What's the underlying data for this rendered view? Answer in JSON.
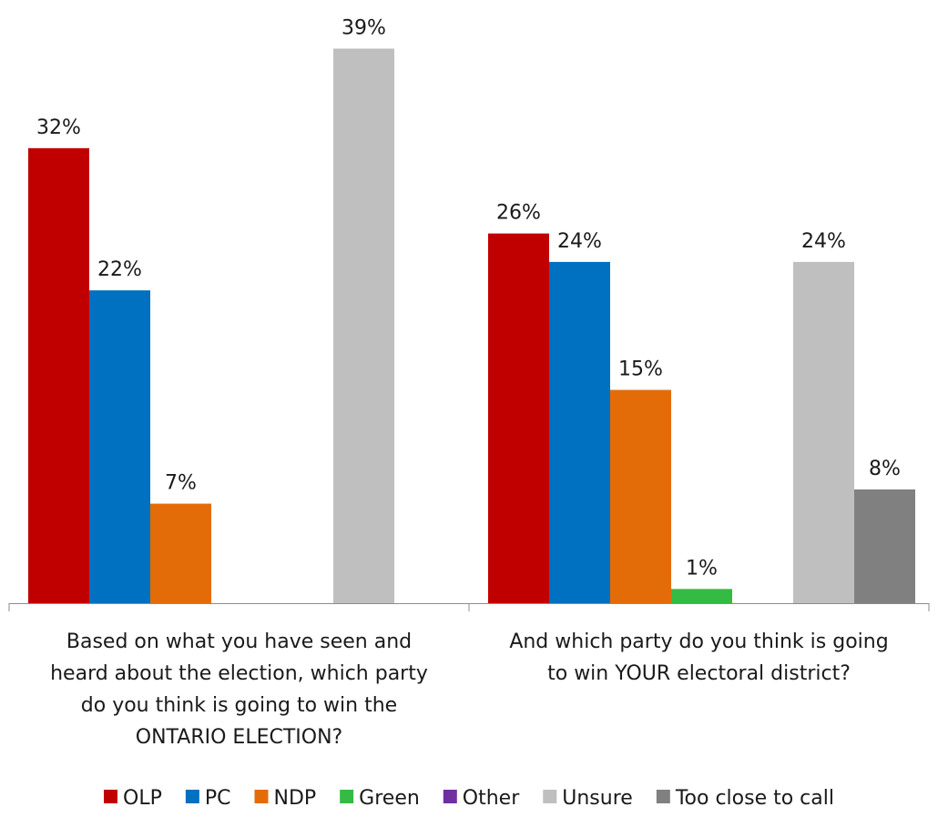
{
  "chart_data": {
    "type": "bar",
    "value_suffix": "%",
    "ylim": [
      0,
      40
    ],
    "grid": false,
    "legend_position": "bottom",
    "categories": [
      "Based on what you have seen and heard about the election, which party do you think is going to win the ONTARIO ELECTION?",
      "And which party do you think is going to win YOUR electoral district?"
    ],
    "category_lines": [
      [
        "Based on what you have seen and",
        "heard about the election, which party",
        "do you think is going to win the",
        "ONTARIO ELECTION?"
      ],
      [
        "And which party do you think is going",
        "to win YOUR electoral district?"
      ]
    ],
    "series": [
      {
        "name": "OLP",
        "color": "#C00000",
        "values": [
          32,
          26
        ]
      },
      {
        "name": "PC",
        "color": "#0070C0",
        "values": [
          22,
          24
        ]
      },
      {
        "name": "NDP",
        "color": "#E36C09",
        "values": [
          7,
          15
        ]
      },
      {
        "name": "Green",
        "color": "#33BB44",
        "values": [
          null,
          1
        ]
      },
      {
        "name": "Other",
        "color": "#7030A0",
        "values": [
          null,
          null
        ]
      },
      {
        "name": "Unsure",
        "color": "#BFBFBF",
        "values": [
          39,
          24
        ]
      },
      {
        "name": "Too close to call",
        "color": "#808080",
        "values": [
          null,
          8
        ]
      }
    ]
  }
}
